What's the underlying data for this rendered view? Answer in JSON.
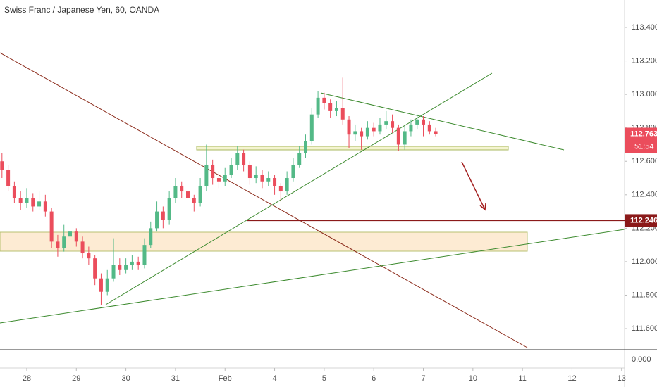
{
  "chart_data": {
    "type": "candlestick",
    "title": "Swiss Franc / Japanese Yen, 60, OANDA",
    "x": [
      -0.5,
      -0.375,
      -0.25,
      -0.125,
      0,
      0.125,
      0.25,
      0.375,
      0.5,
      0.625,
      0.75,
      0.875,
      1,
      1.125,
      1.25,
      1.375,
      1.5,
      1.625,
      1.75,
      1.875,
      2,
      2.125,
      2.25,
      2.375,
      2.5,
      2.625,
      2.75,
      2.875,
      3,
      3.125,
      3.25,
      3.375,
      3.5,
      3.625,
      3.75,
      3.875,
      4,
      4.125,
      4.25,
      4.375,
      4.5,
      4.625,
      4.75,
      4.875,
      5,
      5.125,
      5.25,
      5.375,
      5.5,
      5.625,
      5.75,
      5.875,
      6,
      6.125,
      6.25,
      6.375,
      6.5,
      6.625,
      6.75,
      6.875,
      7,
      7.125,
      7.25,
      7.375,
      7.5,
      7.625,
      7.75,
      7.875,
      8,
      8.125,
      8.25
    ],
    "open": [
      112.6,
      112.55,
      112.45,
      112.38,
      112.35,
      112.38,
      112.33,
      112.36,
      112.3,
      112.12,
      112.08,
      112.15,
      112.18,
      112.12,
      112.05,
      112.02,
      111.9,
      111.82,
      111.9,
      111.98,
      111.95,
      111.98,
      112.0,
      111.98,
      112.1,
      112.2,
      112.3,
      112.25,
      112.38,
      112.45,
      112.42,
      112.38,
      112.35,
      112.45,
      112.58,
      112.5,
      112.48,
      112.52,
      112.58,
      112.65,
      112.58,
      112.5,
      112.52,
      112.48,
      112.5,
      112.45,
      112.42,
      112.5,
      112.58,
      112.65,
      112.72,
      112.88,
      112.98,
      112.95,
      112.9,
      112.92,
      112.85,
      112.76,
      112.78,
      112.75,
      112.8,
      112.78,
      112.82,
      112.84,
      112.8,
      112.7,
      112.78,
      112.82,
      112.85,
      112.82,
      112.78
    ],
    "high": [
      112.65,
      112.58,
      112.48,
      112.42,
      112.44,
      112.41,
      112.42,
      112.4,
      112.32,
      112.16,
      112.22,
      112.24,
      112.2,
      112.15,
      112.09,
      112.04,
      111.93,
      111.95,
      112.14,
      112.02,
      112.02,
      112.04,
      112.03,
      112.14,
      112.24,
      112.36,
      112.33,
      112.42,
      112.5,
      112.48,
      112.45,
      112.4,
      112.5,
      112.7,
      112.61,
      112.54,
      112.56,
      112.62,
      112.69,
      112.67,
      112.6,
      112.57,
      112.55,
      112.54,
      112.52,
      112.47,
      112.54,
      112.62,
      112.69,
      112.76,
      112.92,
      113.02,
      113.01,
      112.97,
      112.96,
      113.1,
      112.87,
      112.82,
      112.8,
      112.84,
      112.83,
      112.86,
      112.9,
      112.88,
      112.82,
      112.81,
      112.85,
      112.88,
      112.87,
      112.84,
      112.8
    ],
    "low": [
      112.5,
      112.42,
      112.35,
      112.31,
      112.32,
      112.3,
      112.31,
      112.27,
      112.08,
      112.03,
      112.06,
      112.12,
      112.09,
      112.02,
      111.98,
      111.86,
      111.74,
      111.8,
      111.88,
      111.92,
      111.93,
      111.95,
      111.95,
      111.96,
      112.08,
      112.18,
      112.2,
      112.22,
      112.35,
      112.38,
      112.33,
      112.3,
      112.33,
      112.42,
      112.46,
      112.44,
      112.45,
      112.5,
      112.55,
      112.54,
      112.46,
      112.47,
      112.44,
      112.45,
      112.4,
      112.36,
      112.4,
      112.48,
      112.56,
      112.62,
      112.7,
      112.86,
      112.91,
      112.86,
      112.87,
      112.82,
      112.68,
      112.72,
      112.67,
      112.73,
      112.75,
      112.76,
      112.79,
      112.77,
      112.66,
      112.67,
      112.75,
      112.79,
      112.75,
      112.76,
      112.75
    ],
    "close": [
      112.55,
      112.45,
      112.38,
      112.35,
      112.38,
      112.33,
      112.36,
      112.3,
      112.12,
      112.08,
      112.15,
      112.18,
      112.12,
      112.05,
      112.02,
      111.9,
      111.82,
      111.9,
      111.98,
      111.95,
      111.98,
      112.0,
      111.98,
      112.1,
      112.2,
      112.3,
      112.25,
      112.38,
      112.45,
      112.42,
      112.38,
      112.35,
      112.45,
      112.58,
      112.5,
      112.48,
      112.52,
      112.58,
      112.65,
      112.58,
      112.5,
      112.52,
      112.48,
      112.5,
      112.45,
      112.42,
      112.5,
      112.58,
      112.65,
      112.72,
      112.88,
      112.98,
      112.95,
      112.9,
      112.92,
      112.85,
      112.76,
      112.78,
      112.75,
      112.8,
      112.78,
      112.82,
      112.84,
      112.8,
      112.7,
      112.78,
      112.82,
      112.85,
      112.82,
      112.78,
      112.763
    ],
    "up_color": "#53b987",
    "down_color": "#eb4d5c",
    "xlim": [
      -0.54,
      12.06
    ],
    "xticks": [
      {
        "value": 0,
        "label": "28"
      },
      {
        "value": 1,
        "label": "29"
      },
      {
        "value": 2,
        "label": "30"
      },
      {
        "value": 3,
        "label": "31"
      },
      {
        "value": 4,
        "label": "Feb"
      },
      {
        "value": 5,
        "label": "4"
      },
      {
        "value": 6,
        "label": "5"
      },
      {
        "value": 7,
        "label": "6"
      },
      {
        "value": 8,
        "label": "7"
      },
      {
        "value": 9,
        "label": "10"
      },
      {
        "value": 10,
        "label": "11"
      },
      {
        "value": 11,
        "label": "12"
      },
      {
        "value": 12,
        "label": "13"
      }
    ],
    "ylim": [
      111.474,
      113.564
    ],
    "yticks": [
      {
        "value": 111.6,
        "label": "111.600"
      },
      {
        "value": 111.8,
        "label": "111.800"
      },
      {
        "value": 112.0,
        "label": "112.000"
      },
      {
        "value": 112.2,
        "label": "112.200"
      },
      {
        "value": 112.4,
        "label": "112.400"
      },
      {
        "value": 112.6,
        "label": "112.600"
      },
      {
        "value": 112.8,
        "label": "112.800"
      },
      {
        "value": 113.0,
        "label": "113.000"
      },
      {
        "value": 113.2,
        "label": "113.200"
      },
      {
        "value": 113.4,
        "label": "113.400"
      }
    ],
    "last_price": 112.763,
    "countdown": "51:54",
    "price_line": 112.246,
    "lower_pane": {
      "yticks": [
        {
          "value": 0,
          "label": "0.000"
        }
      ]
    }
  }
}
